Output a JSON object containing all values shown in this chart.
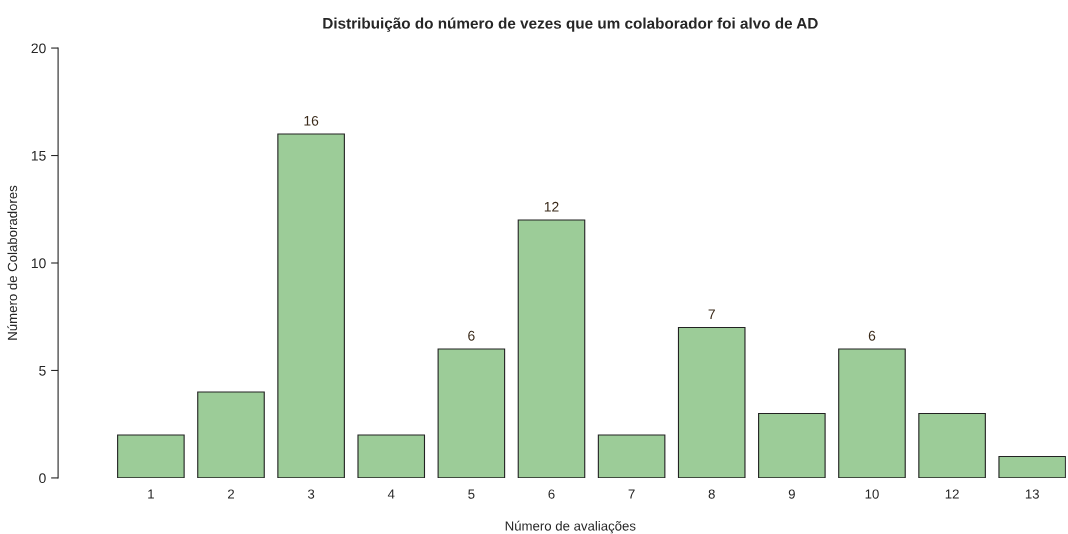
{
  "chart_data": {
    "type": "bar",
    "title": "Distribuição do número de vezes que um colaborador foi alvo de AD",
    "xlabel": "Número de avaliações",
    "ylabel": "Número de Colaboradores",
    "categories": [
      "1",
      "2",
      "3",
      "4",
      "5",
      "6",
      "7",
      "8",
      "9",
      "10",
      "12",
      "13"
    ],
    "values": [
      2,
      4,
      16,
      2,
      6,
      12,
      2,
      7,
      3,
      6,
      3,
      1
    ],
    "value_labels": [
      null,
      null,
      "16",
      null,
      "6",
      "12",
      null,
      "7",
      null,
      "6",
      null,
      null
    ],
    "color": "#9ccc98",
    "ylim": [
      0,
      20
    ],
    "yticks": [
      0,
      5,
      10,
      15,
      20
    ],
    "grid": false
  }
}
